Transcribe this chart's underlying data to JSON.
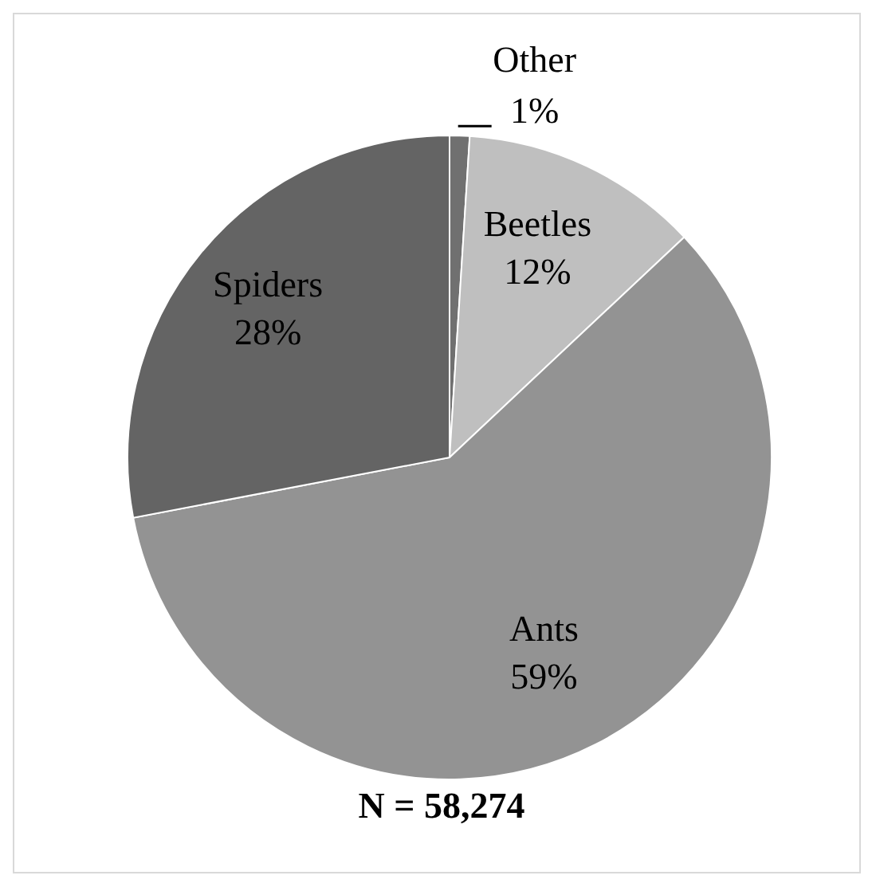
{
  "chart_data": {
    "type": "pie",
    "categories": [
      "Other",
      "Beetles",
      "Ants",
      "Spiders"
    ],
    "values": [
      1,
      12,
      59,
      28
    ],
    "value_labels": [
      "1%",
      "12%",
      "59%",
      "28%"
    ],
    "colors": [
      "#707070",
      "#bfbfbf",
      "#939393",
      "#646464"
    ],
    "annotations": [
      "N = 58,274"
    ]
  }
}
